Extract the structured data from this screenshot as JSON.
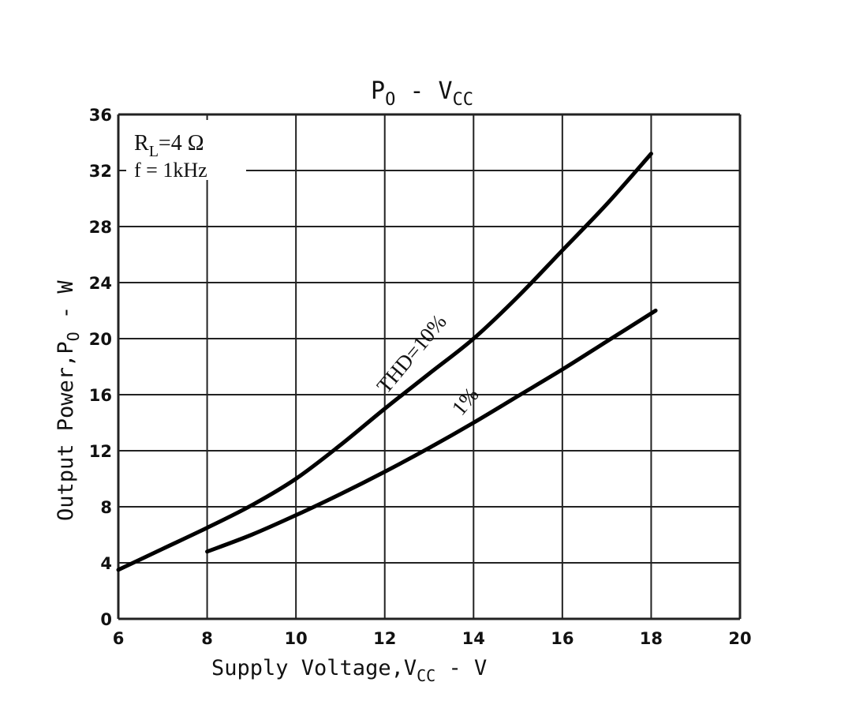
{
  "chart_data": {
    "type": "line",
    "title": {
      "base1": "P",
      "sub1": "O",
      "mid": " - V",
      "sub2": "CC"
    },
    "xlabel": {
      "base": "Supply Voltage,V",
      "sub": "CC",
      "tail": " - V"
    },
    "ylabel": {
      "base": "Output Power,P",
      "sub": "O",
      "tail": " - W"
    },
    "xlim": [
      6,
      20
    ],
    "ylim": [
      0,
      36
    ],
    "xticks": [
      6,
      8,
      10,
      12,
      14,
      16,
      18,
      20
    ],
    "yticks": [
      0,
      4,
      8,
      12,
      16,
      20,
      24,
      28,
      32,
      36
    ],
    "grid": true,
    "conditions": {
      "line1_base": "R",
      "line1_sub": "L",
      "line1_tail": "=4 Ω",
      "line2": "f = 1kHz"
    },
    "series": [
      {
        "name": "THD=10%",
        "x": [
          6,
          7,
          8,
          9,
          10,
          11,
          12,
          13,
          14,
          15,
          16,
          17,
          18
        ],
        "y": [
          3.5,
          5.0,
          6.5,
          8.1,
          10.0,
          12.4,
          15.0,
          17.5,
          20.0,
          23.0,
          26.3,
          29.6,
          33.2
        ]
      },
      {
        "name": "1%",
        "x": [
          8,
          9,
          10,
          11,
          12,
          13,
          14,
          15,
          16,
          17,
          18.1
        ],
        "y": [
          4.8,
          6.0,
          7.4,
          8.9,
          10.5,
          12.2,
          14.0,
          15.9,
          17.8,
          19.8,
          22.0
        ]
      }
    ]
  },
  "colors": {
    "line": "#000000",
    "grid": "#222222"
  }
}
